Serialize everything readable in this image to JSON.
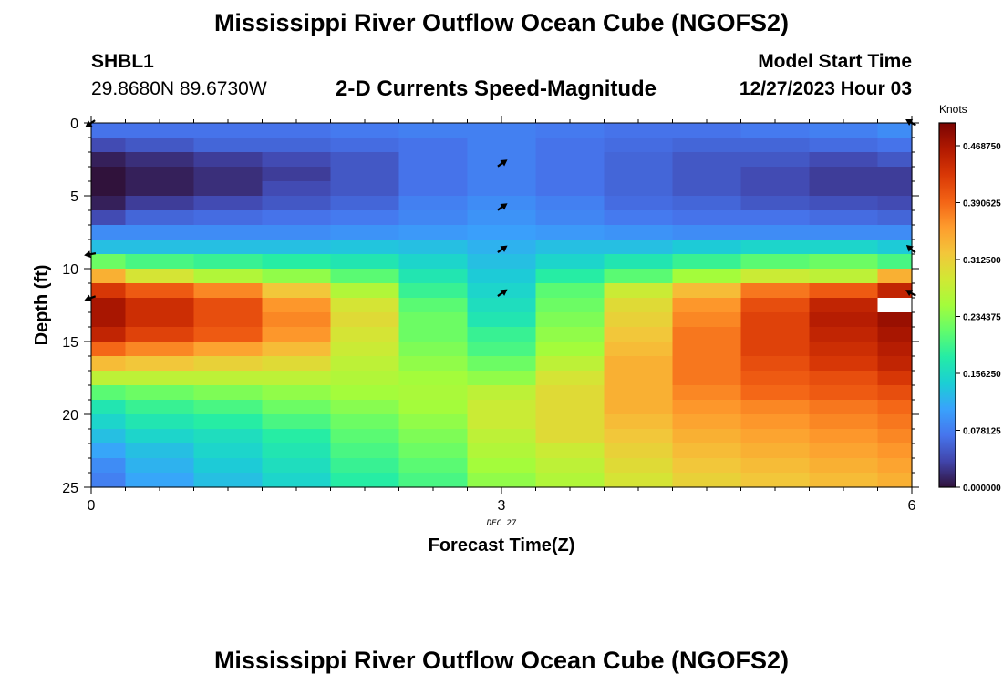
{
  "header": {
    "title": "Mississippi River Outflow Ocean Cube (NGOFS2)",
    "station": "SHBL1",
    "coords": "29.8680N  89.6730W",
    "subtitle": "2-D Currents Speed-Magnitude",
    "model_start_label": "Model Start Time",
    "model_start_value": "12/27/2023 Hour 03"
  },
  "footer": {
    "title": "Mississippi River Outflow Ocean Cube (NGOFS2)"
  },
  "colors": {
    "background": "#ffffff",
    "axis": "#000000",
    "missing": "#ffffff",
    "colormap": [
      "#30123b",
      "#4145ab",
      "#4675ed",
      "#39a2fc",
      "#1bcfd4",
      "#24eca6",
      "#61fc6c",
      "#a4fc3b",
      "#d1e834",
      "#f3c63a",
      "#fe9b2d",
      "#f36315",
      "#d93806",
      "#b11901",
      "#7a0402"
    ]
  },
  "chart_data": {
    "type": "heatmap",
    "xlabel": "Forecast Time(Z)",
    "ylabel": "Depth (ft)",
    "xlim": [
      0,
      6
    ],
    "ylim": [
      25,
      0
    ],
    "x_ticks": [
      0,
      3,
      6
    ],
    "x_tick_labels": [
      "0",
      "3",
      "6"
    ],
    "y_ticks": [
      0,
      5,
      10,
      15,
      20,
      25
    ],
    "y_tick_labels": [
      "0",
      "5",
      "10",
      "15",
      "20",
      "25"
    ],
    "date_label": "DEC 27",
    "colorbar": {
      "label": "Knots",
      "vmin": 0.0,
      "vmax": 0.5,
      "ticks": [
        0.0,
        0.078125,
        0.15625,
        0.234375,
        0.3125,
        0.390625,
        0.46875
      ],
      "tick_labels": [
        "0.000000",
        "0.078125",
        "0.156250",
        "0.234375",
        "0.312500",
        "0.390625",
        "0.468750"
      ]
    },
    "x_centers": [
      0,
      0.5,
      1,
      1.5,
      2,
      2.5,
      3,
      3.5,
      4,
      4.5,
      5,
      5.5,
      6
    ],
    "depth_levels": [
      0.5,
      1.5,
      2.5,
      3.5,
      4.5,
      5.5,
      6.5,
      7.5,
      8.5,
      9.5,
      10.5,
      11.5,
      12.5,
      13.5,
      14.5,
      15.5,
      16.5,
      17.5,
      18.5,
      19.5,
      20.5,
      21.5,
      22.5,
      23.5,
      24.5
    ],
    "speed": [
      [
        0.07,
        0.07,
        0.07,
        0.07,
        0.075,
        0.08,
        0.08,
        0.075,
        0.07,
        0.07,
        0.075,
        0.08,
        0.09
      ],
      [
        0.04,
        0.05,
        0.06,
        0.06,
        0.065,
        0.07,
        0.08,
        0.07,
        0.065,
        0.06,
        0.06,
        0.065,
        0.07
      ],
      [
        0.01,
        0.02,
        0.03,
        0.04,
        0.05,
        0.07,
        0.08,
        0.07,
        0.06,
        0.05,
        0.05,
        0.04,
        0.05
      ],
      [
        0.0,
        0.01,
        0.02,
        0.03,
        0.05,
        0.07,
        0.08,
        0.07,
        0.06,
        0.05,
        0.04,
        0.03,
        0.03
      ],
      [
        0.0,
        0.01,
        0.02,
        0.04,
        0.05,
        0.07,
        0.08,
        0.07,
        0.06,
        0.05,
        0.04,
        0.03,
        0.03
      ],
      [
        0.01,
        0.03,
        0.04,
        0.05,
        0.06,
        0.08,
        0.09,
        0.08,
        0.065,
        0.06,
        0.05,
        0.045,
        0.04
      ],
      [
        0.04,
        0.06,
        0.065,
        0.07,
        0.075,
        0.085,
        0.095,
        0.085,
        0.075,
        0.07,
        0.07,
        0.065,
        0.06
      ],
      [
        0.09,
        0.09,
        0.09,
        0.09,
        0.095,
        0.1,
        0.105,
        0.1,
        0.095,
        0.09,
        0.09,
        0.09,
        0.09
      ],
      [
        0.13,
        0.13,
        0.13,
        0.13,
        0.135,
        0.13,
        0.12,
        0.13,
        0.13,
        0.14,
        0.15,
        0.15,
        0.14
      ],
      [
        0.22,
        0.2,
        0.19,
        0.18,
        0.17,
        0.15,
        0.13,
        0.15,
        0.17,
        0.19,
        0.21,
        0.22,
        0.2
      ],
      [
        0.34,
        0.29,
        0.26,
        0.24,
        0.21,
        0.17,
        0.14,
        0.18,
        0.21,
        0.25,
        0.28,
        0.27,
        0.34
      ],
      [
        0.43,
        0.4,
        0.37,
        0.32,
        0.26,
        0.19,
        0.15,
        0.21,
        0.28,
        0.33,
        0.38,
        0.4,
        0.45
      ],
      [
        0.47,
        0.44,
        0.41,
        0.36,
        0.29,
        0.21,
        0.16,
        0.22,
        0.3,
        0.36,
        0.41,
        0.45,
        null
      ],
      [
        0.47,
        0.44,
        0.41,
        0.37,
        0.3,
        0.22,
        0.17,
        0.23,
        0.31,
        0.37,
        0.42,
        0.46,
        0.48
      ],
      [
        0.45,
        0.42,
        0.4,
        0.36,
        0.29,
        0.22,
        0.19,
        0.24,
        0.32,
        0.38,
        0.42,
        0.45,
        0.47
      ],
      [
        0.39,
        0.37,
        0.35,
        0.33,
        0.28,
        0.23,
        0.2,
        0.25,
        0.33,
        0.38,
        0.42,
        0.44,
        0.46
      ],
      [
        0.33,
        0.32,
        0.31,
        0.3,
        0.27,
        0.24,
        0.22,
        0.27,
        0.34,
        0.38,
        0.41,
        0.43,
        0.45
      ],
      [
        0.27,
        0.27,
        0.27,
        0.27,
        0.26,
        0.25,
        0.24,
        0.29,
        0.34,
        0.38,
        0.4,
        0.41,
        0.43
      ],
      [
        0.21,
        0.22,
        0.23,
        0.24,
        0.25,
        0.255,
        0.27,
        0.3,
        0.34,
        0.37,
        0.39,
        0.4,
        0.41
      ],
      [
        0.17,
        0.19,
        0.2,
        0.22,
        0.235,
        0.25,
        0.28,
        0.3,
        0.34,
        0.36,
        0.37,
        0.38,
        0.39
      ],
      [
        0.15,
        0.17,
        0.18,
        0.2,
        0.22,
        0.24,
        0.28,
        0.3,
        0.33,
        0.35,
        0.36,
        0.37,
        0.38
      ],
      [
        0.13,
        0.15,
        0.16,
        0.18,
        0.21,
        0.23,
        0.27,
        0.3,
        0.32,
        0.34,
        0.35,
        0.36,
        0.37
      ],
      [
        0.11,
        0.13,
        0.15,
        0.17,
        0.2,
        0.22,
        0.26,
        0.28,
        0.31,
        0.33,
        0.34,
        0.35,
        0.36
      ],
      [
        0.09,
        0.12,
        0.14,
        0.16,
        0.19,
        0.21,
        0.25,
        0.27,
        0.3,
        0.32,
        0.33,
        0.34,
        0.35
      ],
      [
        0.08,
        0.11,
        0.13,
        0.15,
        0.18,
        0.2,
        0.24,
        0.26,
        0.29,
        0.31,
        0.32,
        0.33,
        0.34
      ]
    ],
    "vectors": [
      {
        "x": 0,
        "depth": 0,
        "angle_deg": 145
      },
      {
        "x": 0,
        "depth": 9,
        "angle_deg": 170
      },
      {
        "x": 0,
        "depth": 12,
        "angle_deg": 160
      },
      {
        "x": 3,
        "depth": 2.8,
        "angle_deg": -35
      },
      {
        "x": 3,
        "depth": 5.8,
        "angle_deg": -35
      },
      {
        "x": 3,
        "depth": 8.7,
        "angle_deg": -35
      },
      {
        "x": 3,
        "depth": 11.7,
        "angle_deg": -35
      },
      {
        "x": 6,
        "depth": 0,
        "angle_deg": -150
      },
      {
        "x": 6,
        "depth": 8.7,
        "angle_deg": -140
      },
      {
        "x": 6,
        "depth": 11.7,
        "angle_deg": -150
      }
    ]
  }
}
